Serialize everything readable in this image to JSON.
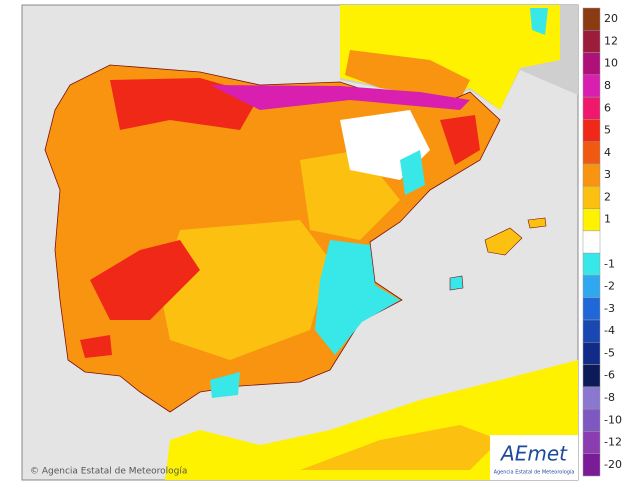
{
  "map": {
    "credit": "© Agencia Estatal de Meteorología",
    "logo": {
      "name": "AEmet",
      "subtitle": "Agencia Estatal de Meteorología"
    },
    "legend": {
      "values": [
        20,
        12,
        10,
        8,
        6,
        5,
        4,
        3,
        2,
        1,
        null,
        -1,
        -2,
        -3,
        -4,
        -5,
        -6,
        -8,
        -10,
        -12,
        -20
      ],
      "colors": [
        "#8a3b12",
        "#9c1c3c",
        "#b0107a",
        "#d81fb0",
        "#f0186c",
        "#f02818",
        "#f05a10",
        "#f89410",
        "#fbc010",
        "#fff200",
        "#ffffff",
        "#38e8e8",
        "#30a8f0",
        "#2068d8",
        "#1848b0",
        "#102c88",
        "#0c1a5a",
        "#8a78d0",
        "#7c58c0",
        "#8a3cb0",
        "#7a1c98"
      ]
    }
  }
}
